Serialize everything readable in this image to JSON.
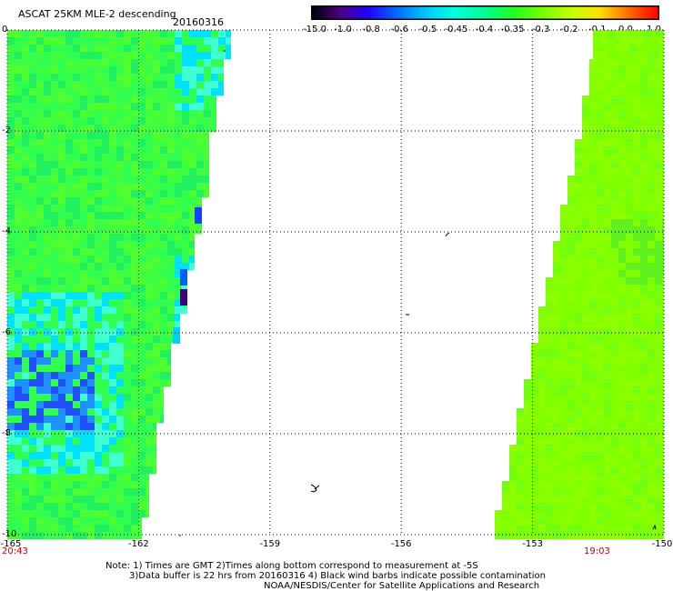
{
  "header": {
    "title": "ASCAT 25KM MLE-2 descending",
    "date": "20160316"
  },
  "colorbar": {
    "labels": [
      "-15.0",
      "-1.0",
      "-0.8",
      "-0.6",
      "-0.5",
      "-0.45",
      "-0.4",
      "-0.35",
      "-0.3",
      "-0.2",
      "-0.1",
      "0.0",
      "1.0"
    ],
    "colors": [
      "#000000",
      "#5a007f",
      "#2800ff",
      "#0090ff",
      "#00e0ff",
      "#00ffd0",
      "#00ff80",
      "#30ff00",
      "#7fff00",
      "#d0ff00",
      "#ffd000",
      "#ff6000",
      "#ff0000"
    ]
  },
  "map": {
    "y_labels": [
      "0",
      "-2",
      "-4",
      "-6",
      "-8",
      "-10"
    ],
    "x_labels": [
      "-165",
      "-162",
      "-159",
      "-156",
      "-153",
      "-150"
    ],
    "start_time": "20:43",
    "end_time": "19:03"
  },
  "notes": {
    "line1": "Note: 1) Times are GMT 2)Times along bottom correspond to measurement at -5S",
    "line2": "3)Data buffer is 22 hrs from 20160316 4) Black wind barbs indicate possible contamination",
    "line3": "NOAA/NESDIS/Center for Satellite Applications and Research"
  }
}
